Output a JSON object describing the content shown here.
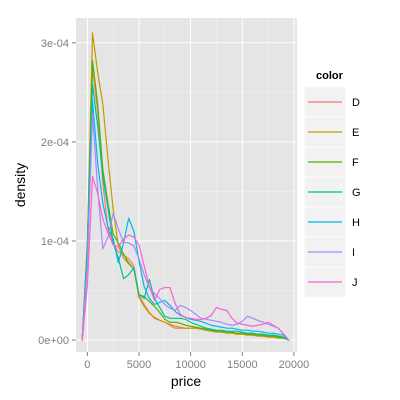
{
  "chart_data": {
    "type": "line",
    "xlabel": "price",
    "ylabel": "density",
    "xlim": [
      -1100,
      20300
    ],
    "ylim": [
      -1.2e-05,
      0.000325
    ],
    "x_ticks": [
      0,
      5000,
      10000,
      15000,
      20000
    ],
    "x_tick_labels": [
      "0",
      "5000",
      "10000",
      "15000",
      "20000"
    ],
    "y_ticks": [
      0,
      0.0001,
      0.0002,
      0.0003
    ],
    "y_tick_labels": [
      "0e+00",
      "1e-04",
      "2e-04",
      "3e-04"
    ],
    "grid": true,
    "legend": {
      "title": "color",
      "placement": "right"
    },
    "x": [
      -500,
      0,
      500,
      1000,
      1500,
      2000,
      2500,
      3000,
      3500,
      4000,
      4500,
      5000,
      5500,
      6000,
      6500,
      7000,
      7500,
      8000,
      8500,
      9000,
      9500,
      10000,
      10500,
      11000,
      11500,
      12000,
      12500,
      13000,
      13500,
      14000,
      14500,
      15000,
      15500,
      16000,
      16500,
      17000,
      17500,
      18000,
      18500,
      19000,
      19500
    ],
    "series": [
      {
        "name": "D",
        "color": "#F8766D",
        "values": [
          0,
          9.5e-05,
          0.000275,
          0.00023,
          0.000158,
          0.000112,
          9.7e-05,
          8.9e-05,
          8.6e-05,
          8.2e-05,
          7.5e-05,
          4.5e-05,
          3.6e-05,
          2.8e-05,
          2.2e-05,
          2e-05,
          1.8e-05,
          1.6e-05,
          1.4e-05,
          1.3e-05,
          1.2e-05,
          1.2e-05,
          1.2e-05,
          1.1e-05,
          1e-05,
          9e-06,
          9e-06,
          8e-06,
          8e-06,
          7e-06,
          6e-06,
          6e-06,
          6e-06,
          5e-06,
          5e-06,
          4e-06,
          4e-06,
          4e-06,
          3e-06,
          2e-06,
          0
        ]
      },
      {
        "name": "E",
        "color": "#C49A00",
        "values": [
          0,
          9.8e-05,
          0.00031,
          0.00027,
          0.000238,
          0.000182,
          0.000132,
          9.5e-05,
          8.3e-05,
          7.7e-05,
          7.2e-05,
          4.3e-05,
          3.4e-05,
          2.7e-05,
          2.3e-05,
          2e-05,
          1.8e-05,
          1.5e-05,
          1.2e-05,
          1.2e-05,
          1.2e-05,
          1.2e-05,
          1.2e-05,
          1.1e-05,
          1e-05,
          9e-06,
          8e-06,
          8e-06,
          7e-06,
          7e-06,
          6e-06,
          6e-06,
          5e-06,
          5e-06,
          4e-06,
          4e-06,
          3e-06,
          3e-06,
          2e-06,
          2e-06,
          0
        ]
      },
      {
        "name": "F",
        "color": "#53B400",
        "values": [
          0,
          9.5e-05,
          0.000282,
          0.000238,
          0.000172,
          0.000138,
          0.000107,
          9.8e-05,
          8.7e-05,
          7.8e-05,
          7.2e-05,
          4.6e-05,
          4.4e-05,
          3.9e-05,
          3.4e-05,
          2.8e-05,
          2.1e-05,
          1.8e-05,
          1.8e-05,
          1.7e-05,
          1.5e-05,
          1.4e-05,
          1.3e-05,
          1.2e-05,
          1.1e-05,
          1e-05,
          9e-06,
          9e-06,
          8e-06,
          8e-06,
          7e-06,
          7e-06,
          6e-06,
          6e-06,
          5e-06,
          5e-06,
          4e-06,
          4e-06,
          3e-06,
          2e-06,
          0
        ]
      },
      {
        "name": "G",
        "color": "#00C094",
        "values": [
          0,
          9e-05,
          0.000258,
          0.000216,
          0.000165,
          0.000133,
          9.8e-05,
          8.3e-05,
          6.2e-05,
          6.6e-05,
          7.3e-05,
          4.6e-05,
          4.2e-05,
          6.1e-05,
          4.2e-05,
          3.3e-05,
          2.4e-05,
          2.2e-05,
          2.2e-05,
          2.2e-05,
          2.1e-05,
          1.8e-05,
          1.6e-05,
          1.4e-05,
          1.2e-05,
          1.1e-05,
          1e-05,
          1e-05,
          9e-06,
          9e-06,
          9e-06,
          8e-06,
          7e-06,
          7e-06,
          6e-06,
          6e-06,
          5e-06,
          5e-06,
          4e-06,
          3e-06,
          0
        ]
      },
      {
        "name": "H",
        "color": "#00B6EB",
        "values": [
          0,
          8.2e-05,
          0.000242,
          0.000178,
          0.000138,
          0.000114,
          0.000102,
          7.8e-05,
          9.8e-05,
          0.000123,
          0.00011,
          8e-05,
          5.4e-05,
          4.2e-05,
          3.6e-05,
          3.8e-05,
          4e-05,
          3.5e-05,
          2.9e-05,
          2.5e-05,
          2.3e-05,
          2.1e-05,
          2e-05,
          1.9e-05,
          1.7e-05,
          1.5e-05,
          1.4e-05,
          1.3e-05,
          1.2e-05,
          1.2e-05,
          1.1e-05,
          1e-05,
          1e-05,
          9e-06,
          9e-06,
          8e-06,
          7e-06,
          7e-06,
          6e-06,
          5e-06,
          0
        ]
      },
      {
        "name": "I",
        "color": "#A58AFF",
        "values": [
          0,
          7.5e-05,
          0.000228,
          0.000152,
          9.2e-05,
          0.000104,
          0.000128,
          0.000112,
          9.9e-05,
          9.8e-05,
          9.5e-05,
          8.2e-05,
          6.6e-05,
          5.3e-05,
          4.7e-05,
          4.2e-05,
          3.6e-05,
          3.2e-05,
          3e-05,
          3.5e-05,
          3.3e-05,
          3e-05,
          2.6e-05,
          2.2e-05,
          2.1e-05,
          2e-05,
          1.9e-05,
          1.8e-05,
          1.6e-05,
          1.5e-05,
          1.6e-05,
          1.9e-05,
          2.4e-05,
          2.2e-05,
          2e-05,
          1.8e-05,
          1.6e-05,
          1.4e-05,
          1.2e-05,
          6e-06,
          0
        ]
      },
      {
        "name": "J",
        "color": "#FB61D7",
        "values": [
          0,
          5.5e-05,
          0.000165,
          0.000148,
          0.000122,
          0.000108,
          9.6e-05,
          9.4e-05,
          0.000102,
          0.000106,
          0.000104,
          9.6e-05,
          7.5e-05,
          5.4e-05,
          4e-05,
          5.1e-05,
          5.3e-05,
          5.3e-05,
          3.7e-05,
          2.6e-05,
          2.3e-05,
          2.2e-05,
          2.1e-05,
          2.1e-05,
          2.2e-05,
          2.5e-05,
          3.3e-05,
          3.1e-05,
          3e-05,
          2.2e-05,
          1.7e-05,
          1.6e-05,
          1.5e-05,
          1.4e-05,
          1.5e-05,
          1.6e-05,
          1.8e-05,
          1.5e-05,
          1.2e-05,
          6e-06,
          0
        ]
      }
    ]
  }
}
